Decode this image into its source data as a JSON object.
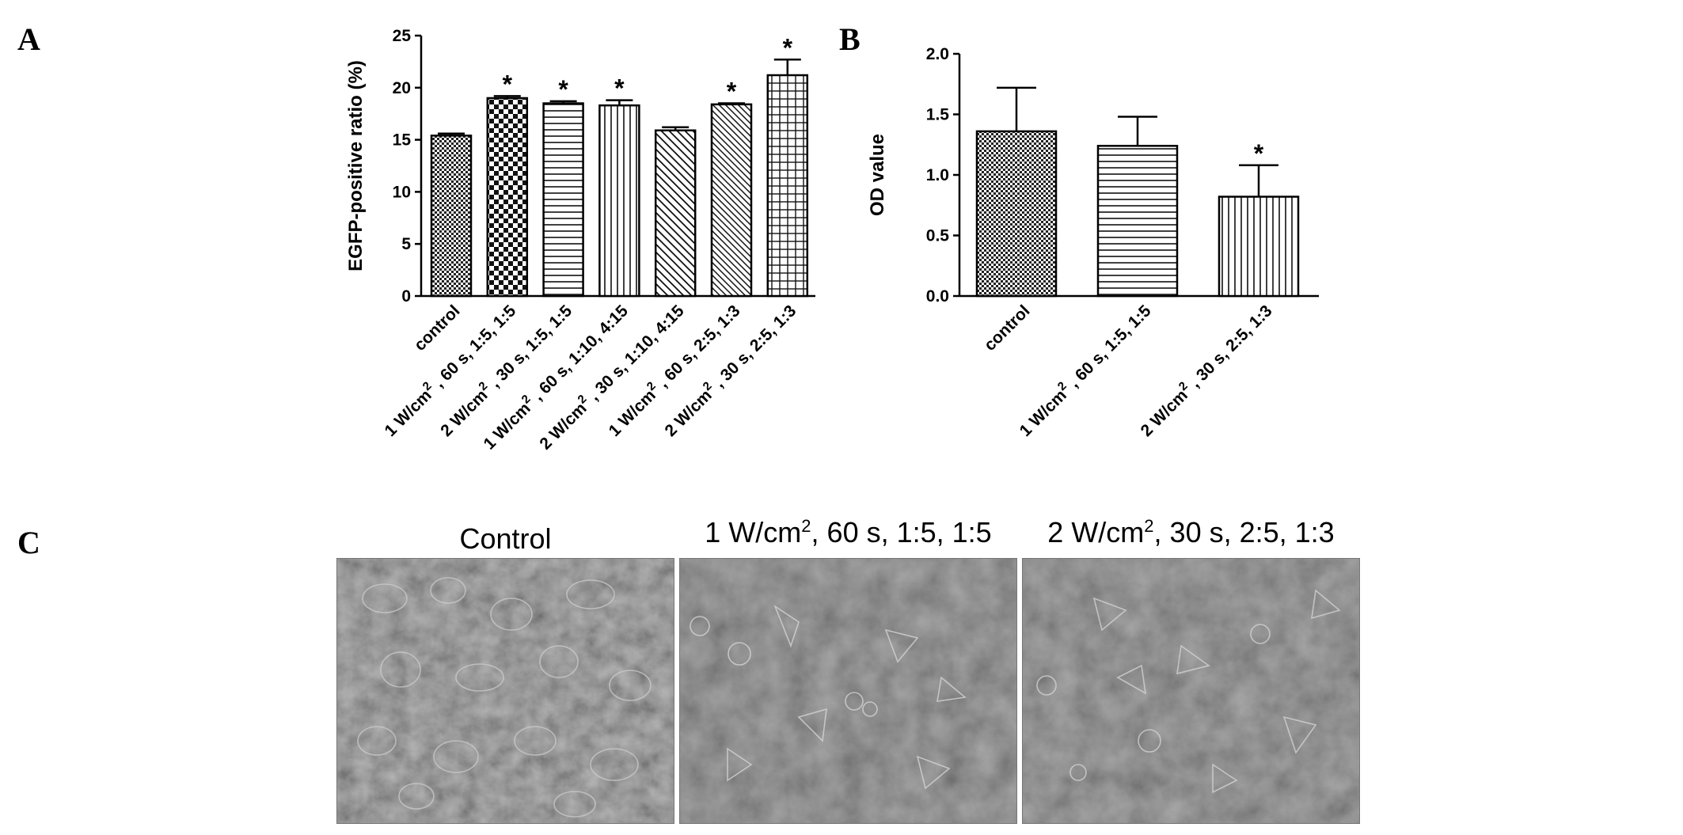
{
  "panels": {
    "a": "A",
    "b": "B",
    "c": "C"
  },
  "chart_data": [
    {
      "type": "bar",
      "ylabel": "EGFP-positive ratio (%)",
      "ylim": [
        0,
        25
      ],
      "yticks": [
        "0",
        "5",
        "10",
        "15",
        "20",
        "25"
      ],
      "categories": [
        "control",
        "1 W/cm² , 60 s, 1:5, 1:5",
        "2 W/cm² , 30 s, 1:5, 1:5",
        "1 W/cm² , 60 s, 1:10, 4:15",
        "2 W/cm² , 30 s, 1:10, 4:15",
        "1 W/cm² , 60 s, 2:5, 1:3",
        "2 W/cm² , 30 s, 2:5, 1:3"
      ],
      "values": [
        15.4,
        19.0,
        18.5,
        18.3,
        15.9,
        18.4,
        21.2
      ],
      "errors": [
        0.2,
        0.2,
        0.2,
        0.5,
        0.3,
        0.1,
        1.5
      ],
      "significant": [
        false,
        true,
        true,
        true,
        false,
        true,
        true
      ],
      "significance_marker": "*",
      "patterns": [
        "fine-check",
        "checker",
        "hlines",
        "vlines",
        "diag-back",
        "diag-fwd",
        "grid"
      ]
    },
    {
      "type": "bar",
      "ylabel": "OD value",
      "ylim": [
        0,
        2.0
      ],
      "yticks": [
        "0.0",
        "0.5",
        "1.0",
        "1.5",
        "2.0"
      ],
      "categories": [
        "control",
        "1 W/cm² , 60 s, 1:5, 1:5",
        "2 W/cm² , 30 s, 2:5, 1:3"
      ],
      "values": [
        1.36,
        1.24,
        0.82
      ],
      "errors": [
        0.36,
        0.24,
        0.26
      ],
      "significant": [
        false,
        false,
        true
      ],
      "significance_marker": "*",
      "patterns": [
        "fine-check",
        "hlines",
        "vlines"
      ]
    }
  ],
  "micrographs": [
    {
      "title": "Control"
    },
    {
      "title": "1 W/cm², 60 s, 1:5, 1:5"
    },
    {
      "title": "2 W/cm², 30 s, 2:5, 1:3"
    }
  ]
}
